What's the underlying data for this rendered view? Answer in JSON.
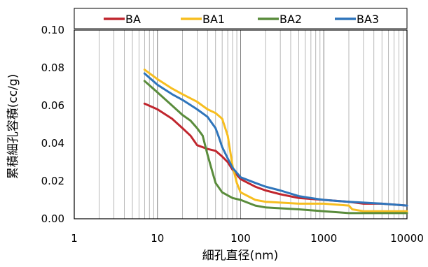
{
  "chart_data": {
    "type": "line",
    "xscale": "log",
    "xlim": [
      1,
      10000
    ],
    "ylim": [
      0,
      0.1
    ],
    "xlabel": "細孔直径(nm)",
    "ylabel": "累積細孔容積(cc/g)",
    "x_tick_labels": [
      "1",
      "10",
      "100",
      "1000",
      "10000"
    ],
    "y_tick_labels": [
      "0.00",
      "0.02",
      "0.04",
      "0.06",
      "0.08",
      "0.10"
    ],
    "grid": "vertical log minor + major gridlines",
    "legend_position": "top",
    "series": [
      {
        "name": "BA",
        "color": "#C0262E",
        "points": [
          [
            7,
            0.061
          ],
          [
            10,
            0.058
          ],
          [
            15,
            0.053
          ],
          [
            20,
            0.048
          ],
          [
            25,
            0.044
          ],
          [
            30,
            0.039
          ],
          [
            40,
            0.037
          ],
          [
            50,
            0.036
          ],
          [
            60,
            0.033
          ],
          [
            70,
            0.03
          ],
          [
            80,
            0.026
          ],
          [
            100,
            0.021
          ],
          [
            150,
            0.017
          ],
          [
            200,
            0.015
          ],
          [
            300,
            0.013
          ],
          [
            500,
            0.011
          ],
          [
            1000,
            0.01
          ],
          [
            2000,
            0.009
          ],
          [
            3000,
            0.008
          ],
          [
            5000,
            0.008
          ],
          [
            10000,
            0.007
          ]
        ]
      },
      {
        "name": "BA1",
        "color": "#F7BE20",
        "points": [
          [
            7,
            0.079
          ],
          [
            10,
            0.074
          ],
          [
            15,
            0.069
          ],
          [
            20,
            0.066
          ],
          [
            30,
            0.062
          ],
          [
            40,
            0.058
          ],
          [
            50,
            0.056
          ],
          [
            60,
            0.053
          ],
          [
            70,
            0.044
          ],
          [
            80,
            0.028
          ],
          [
            90,
            0.019
          ],
          [
            100,
            0.014
          ],
          [
            150,
            0.01
          ],
          [
            200,
            0.009
          ],
          [
            500,
            0.008
          ],
          [
            1000,
            0.008
          ],
          [
            2000,
            0.007
          ],
          [
            2200,
            0.005
          ],
          [
            3000,
            0.004
          ],
          [
            10000,
            0.004
          ]
        ]
      },
      {
        "name": "BA2",
        "color": "#5A8C3C",
        "points": [
          [
            7,
            0.073
          ],
          [
            10,
            0.067
          ],
          [
            15,
            0.06
          ],
          [
            20,
            0.055
          ],
          [
            25,
            0.052
          ],
          [
            30,
            0.048
          ],
          [
            35,
            0.044
          ],
          [
            40,
            0.034
          ],
          [
            45,
            0.026
          ],
          [
            50,
            0.019
          ],
          [
            60,
            0.014
          ],
          [
            80,
            0.011
          ],
          [
            100,
            0.01
          ],
          [
            150,
            0.007
          ],
          [
            200,
            0.006
          ],
          [
            500,
            0.005
          ],
          [
            1000,
            0.004
          ],
          [
            2000,
            0.003
          ],
          [
            5000,
            0.003
          ],
          [
            10000,
            0.003
          ]
        ]
      },
      {
        "name": "BA3",
        "color": "#2F75BB",
        "points": [
          [
            7,
            0.077
          ],
          [
            10,
            0.071
          ],
          [
            15,
            0.066
          ],
          [
            20,
            0.063
          ],
          [
            30,
            0.058
          ],
          [
            40,
            0.054
          ],
          [
            50,
            0.048
          ],
          [
            55,
            0.043
          ],
          [
            60,
            0.038
          ],
          [
            70,
            0.032
          ],
          [
            80,
            0.027
          ],
          [
            100,
            0.022
          ],
          [
            150,
            0.019
          ],
          [
            200,
            0.017
          ],
          [
            300,
            0.015
          ],
          [
            500,
            0.012
          ],
          [
            700,
            0.011
          ],
          [
            1000,
            0.01
          ],
          [
            2000,
            0.009
          ],
          [
            5000,
            0.008
          ],
          [
            10000,
            0.007
          ]
        ]
      }
    ]
  }
}
